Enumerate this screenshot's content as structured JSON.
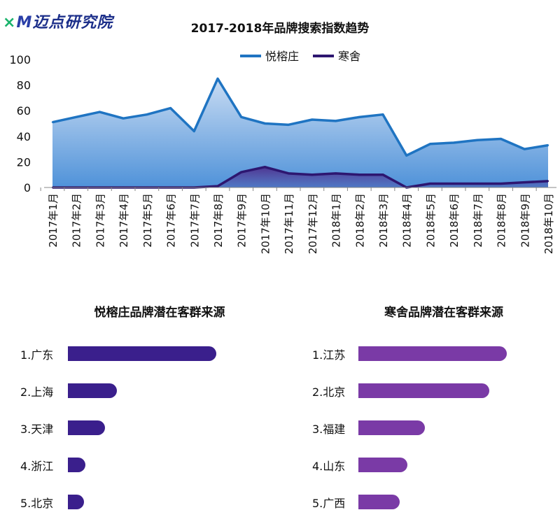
{
  "logo": {
    "mark": "M",
    "mark_prefix": "×",
    "text": "迈点研究院"
  },
  "colors": {
    "series1_line": "#1f74c2",
    "series1_fill_top": "#c9dcf3",
    "series1_fill_bottom": "#4f92d9",
    "series2_line": "#2d1670",
    "series2_fill": "#4a2a8a",
    "left_bar": "#3a1f8c",
    "right_bar": "#7a3aa6"
  },
  "chart_data": [
    {
      "type": "area",
      "title": "2017-2018年品牌搜索指数趋势",
      "xlabel": "",
      "ylabel": "",
      "ylim": [
        0,
        100
      ],
      "yticks": [
        0,
        20,
        40,
        60,
        80,
        100
      ],
      "grid": false,
      "legend_position": "top-center",
      "categories": [
        "2017年1月",
        "2017年2月",
        "2017年3月",
        "2017年4月",
        "2017年5月",
        "2017年6月",
        "2017年7月",
        "2017年8月",
        "2017年9月",
        "2017年10月",
        "2017年11月",
        "2017年12月",
        "2018年1月",
        "2018年2月",
        "2018年3月",
        "2018年4月",
        "2018年5月",
        "2018年6月",
        "2018年7月",
        "2018年8月",
        "2018年9月",
        "2018年10月"
      ],
      "series": [
        {
          "name": "悦榕庄",
          "values": [
            51,
            55,
            59,
            54,
            57,
            62,
            44,
            85,
            55,
            50,
            49,
            53,
            52,
            55,
            57,
            25,
            34,
            35,
            37,
            38,
            30,
            33
          ]
        },
        {
          "name": "寒舍",
          "values": [
            0,
            0,
            0,
            0,
            0,
            0,
            0,
            1,
            12,
            16,
            11,
            10,
            11,
            10,
            10,
            0,
            3,
            3,
            3,
            3,
            4,
            5
          ]
        }
      ]
    },
    {
      "type": "bar",
      "title": "悦榕庄品牌潜在客群来源",
      "categories": [
        "1.广东",
        "2.上海",
        "3.天津",
        "4.浙江",
        "5.北京"
      ],
      "values": [
        100,
        33,
        25,
        12,
        11
      ]
    },
    {
      "type": "bar",
      "title": "寒舍品牌潜在客群来源",
      "categories": [
        "1.江苏",
        "2.北京",
        "3.福建",
        "4.山东",
        "5.广西"
      ],
      "values": [
        100,
        88,
        45,
        33,
        28
      ]
    }
  ]
}
